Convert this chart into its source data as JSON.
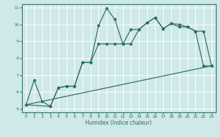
{
  "xlabel": "Humidex (Indice chaleur)",
  "bg_color": "#cfe8e8",
  "grid_color": "#ffffff",
  "line_color": "#2d6b6b",
  "xlim": [
    -0.5,
    23.5
  ],
  "ylim": [
    4.8,
    11.2
  ],
  "xticks": [
    0,
    1,
    2,
    3,
    4,
    5,
    6,
    7,
    8,
    9,
    10,
    11,
    12,
    13,
    14,
    15,
    16,
    17,
    18,
    19,
    20,
    21,
    22,
    23
  ],
  "yticks": [
    5,
    6,
    7,
    8,
    9,
    10,
    11
  ],
  "line1_x": [
    0,
    1,
    2,
    3,
    4,
    5,
    6,
    7,
    8,
    9,
    10,
    11,
    12,
    13,
    14,
    15,
    16,
    17,
    18,
    19,
    20,
    21,
    22,
    23
  ],
  "line1_y": [
    5.25,
    6.7,
    5.45,
    5.15,
    6.25,
    6.35,
    6.35,
    7.75,
    7.75,
    9.95,
    10.95,
    10.3,
    8.85,
    8.85,
    9.7,
    10.1,
    10.4,
    9.75,
    10.05,
    10.0,
    9.85,
    9.6,
    7.55,
    7.55
  ],
  "line2_x": [
    0,
    3,
    4,
    5,
    6,
    7,
    8,
    9,
    10,
    11,
    12,
    13,
    14,
    15,
    16,
    17,
    18,
    19,
    20,
    21,
    22,
    23
  ],
  "line2_y": [
    5.25,
    5.15,
    6.25,
    6.35,
    6.35,
    7.75,
    7.75,
    8.85,
    8.85,
    8.85,
    8.85,
    9.7,
    9.7,
    10.1,
    10.4,
    9.75,
    10.05,
    9.85,
    9.85,
    9.6,
    9.6,
    7.55
  ],
  "line3_x": [
    0,
    23
  ],
  "line3_y": [
    5.25,
    7.55
  ]
}
